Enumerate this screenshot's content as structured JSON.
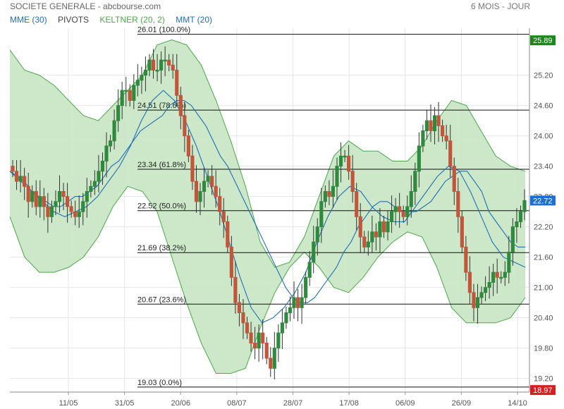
{
  "header": {
    "title": "SOCIETE GENERALE - abcbourse.com",
    "period": "6 MOIS - JOUR"
  },
  "legend": [
    {
      "label": "MME (30)",
      "color": "#1f6fb8"
    },
    {
      "label": "PIVOTS",
      "color": "#444444"
    },
    {
      "label": "KELTNER (20, 2)",
      "color": "#4aa84a"
    },
    {
      "label": "MMT (20)",
      "color": "#1f6fb8"
    }
  ],
  "colors": {
    "up": "#2e8b3d",
    "down": "#c2553a",
    "band_fill": "#c8e6c3",
    "band_line": "#4aa84a",
    "ma": "#1f6fb8",
    "grid": "#e4e4e4",
    "tag_high": "#178a17",
    "tag_last": "#1f6fd0",
    "tag_low": "#d42020"
  },
  "chart_data": {
    "type": "candlestick",
    "y_ticks": [
      "25.20",
      "24.60",
      "24.00",
      "23.40",
      "22.80",
      "22.20",
      "21.60",
      "21.00",
      "20.40",
      "19.80",
      "19.20"
    ],
    "x_ticks": [
      "11/05",
      "31/05",
      "20/06",
      "08/07",
      "28/07",
      "17/08",
      "06/09",
      "26/09",
      "14/10"
    ],
    "ylim": [
      18.93,
      26.13
    ],
    "fib_levels": [
      {
        "value": 26.01,
        "label": "26.01",
        "pct": "(100.0%)"
      },
      {
        "value": 24.51,
        "label": "24.51",
        "pct": "(78.6%)"
      },
      {
        "value": 23.34,
        "label": "23.34",
        "pct": "(61.8%)"
      },
      {
        "value": 22.52,
        "label": "22.52",
        "pct": "(50.0%)"
      },
      {
        "value": 21.69,
        "label": "21.69",
        "pct": "(38.2%)"
      },
      {
        "value": 20.67,
        "label": "20.67",
        "pct": "(23.6%)"
      },
      {
        "value": 19.03,
        "label": "19.03",
        "pct": "(0.0%)"
      }
    ],
    "tags": [
      {
        "label": "25.89",
        "value": 25.89,
        "kind": "high"
      },
      {
        "label": "22.72",
        "value": 22.72,
        "kind": "last"
      },
      {
        "label": "18.97",
        "value": 18.97,
        "kind": "low"
      }
    ],
    "close": [
      23.3,
      23.1,
      23.2,
      23.0,
      22.7,
      22.9,
      22.6,
      22.8,
      22.6,
      22.4,
      22.6,
      22.7,
      22.9,
      22.8,
      22.6,
      22.5,
      22.4,
      22.5,
      22.7,
      22.9,
      23.0,
      23.1,
      23.3,
      23.5,
      23.8,
      23.9,
      24.3,
      24.6,
      24.9,
      24.9,
      24.7,
      25.0,
      25.1,
      25.2,
      25.3,
      25.5,
      25.3,
      25.3,
      25.5,
      25.5,
      25.4,
      25.3,
      24.8,
      24.4,
      24.0,
      23.6,
      23.1,
      22.7,
      22.9,
      23.1,
      23.2,
      23.0,
      22.8,
      22.5,
      22.3,
      21.8,
      21.2,
      20.7,
      20.5,
      20.3,
      20.1,
      19.9,
      19.8,
      20.1,
      19.9,
      19.6,
      19.4,
      19.8,
      20.1,
      20.3,
      20.5,
      20.6,
      20.8,
      20.6,
      20.8,
      21.2,
      21.5,
      21.9,
      22.2,
      22.7,
      22.9,
      22.8,
      23.0,
      23.4,
      23.6,
      23.6,
      23.3,
      22.9,
      22.4,
      22.0,
      21.8,
      21.9,
      22.1,
      22.0,
      22.3,
      22.1,
      22.3,
      22.5,
      22.6,
      22.5,
      22.4,
      22.6,
      22.9,
      23.3,
      23.8,
      24.1,
      24.3,
      24.1,
      24.4,
      24.2,
      24.0,
      23.9,
      23.4,
      22.9,
      22.4,
      21.8,
      21.3,
      20.9,
      20.6,
      20.8,
      20.9,
      21.0,
      21.1,
      21.3,
      21.2,
      21.2,
      21.3,
      21.7,
      22.2,
      22.3,
      22.5,
      22.72
    ],
    "mme30": [
      23.3,
      23.2,
      23.1,
      22.9,
      22.8,
      22.7,
      22.6,
      22.6,
      22.7,
      22.8,
      22.8,
      22.9,
      23.0,
      23.2,
      23.4,
      23.5,
      23.7,
      23.9,
      24.1,
      24.2,
      24.3,
      24.4,
      24.6,
      24.7,
      24.7,
      24.6,
      24.4,
      24.2,
      23.9,
      23.6,
      23.4,
      23.1,
      22.8,
      22.5,
      22.2,
      21.9,
      21.6,
      21.3,
      21.0,
      20.8,
      20.7,
      20.7,
      20.8,
      21.0,
      21.2,
      21.4,
      21.7,
      21.9,
      22.2,
      22.4,
      22.6,
      22.7,
      22.7,
      22.6,
      22.5,
      22.5,
      22.5,
      22.6,
      22.7,
      22.9,
      23.1,
      23.2,
      23.3,
      23.3,
      23.1,
      22.9,
      22.5,
      22.3,
      22.1,
      21.9,
      21.8,
      21.8
    ],
    "mmt20": [
      23.3,
      23.1,
      22.9,
      22.7,
      22.5,
      22.4,
      22.5,
      22.6,
      22.8,
      23.1,
      23.4,
      23.8,
      24.3,
      24.7,
      24.9,
      24.7,
      24.3,
      23.8,
      23.2,
      22.6,
      21.9,
      21.2,
      20.6,
      20.3,
      20.4,
      20.6,
      20.9,
      21.3,
      21.9,
      22.4,
      22.8,
      23.0,
      22.9,
      22.6,
      22.4,
      22.3,
      22.3,
      22.6,
      22.9,
      23.2,
      23.4,
      23.3,
      22.9,
      22.4,
      21.9,
      21.6,
      21.5,
      21.4
    ],
    "keltner_upper": [
      25.7,
      25.3,
      25.2,
      25.0,
      24.7,
      24.4,
      24.3,
      24.6,
      24.9,
      25.2,
      25.8,
      25.9,
      25.8,
      25.4,
      24.7,
      23.9,
      23.0,
      21.9,
      21.4,
      21.5,
      22.0,
      22.8,
      23.6,
      23.9,
      23.7,
      23.7,
      23.5,
      23.5,
      23.8,
      24.3,
      24.7,
      24.6,
      24.1,
      23.6,
      23.4,
      23.3
    ],
    "keltner_lower": [
      22.4,
      21.6,
      21.3,
      21.3,
      21.4,
      21.6,
      22.0,
      22.6,
      23.0,
      22.9,
      22.5,
      21.6,
      20.7,
      19.9,
      19.3,
      19.3,
      19.4,
      20.2,
      20.9,
      21.4,
      21.7,
      21.4,
      21.0,
      20.9,
      21.2,
      21.6,
      21.9,
      22.1,
      22.0,
      21.4,
      20.6,
      20.3,
      20.3,
      20.3,
      20.4,
      20.8
    ]
  }
}
